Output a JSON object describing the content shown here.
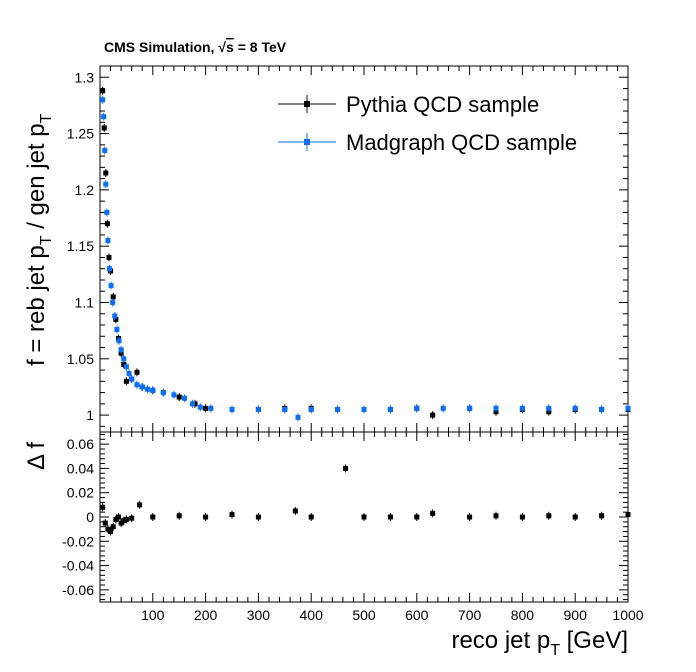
{
  "header": {
    "label": "CMS Simulation, ",
    "sqrt_symbol": "√",
    "energy_var": "s",
    "energy_value": " = 8 TeV"
  },
  "legend": {
    "placement": "top-right",
    "entries": [
      {
        "label": "Pythia QCD sample",
        "color": "#000000",
        "marker": "square"
      },
      {
        "label": "Madgraph QCD sample",
        "color": "#0a6ff5",
        "marker": "square"
      }
    ]
  },
  "axes": {
    "top_ylabel": {
      "main": "f = reb jet p",
      "sub1": "T",
      "mid": " / gen jet p",
      "sub2": "T"
    },
    "bottom_ylabel": "Δ f",
    "xlabel": {
      "main": "reco jet p",
      "sub": "T",
      "unit": " [GeV]"
    }
  },
  "chart_data": [
    {
      "type": "scatter",
      "panel": "ratio",
      "xlim": [
        0,
        1000
      ],
      "ylim": [
        0.985,
        1.31
      ],
      "x_ticks": [
        100,
        200,
        300,
        400,
        500,
        600,
        700,
        800,
        900,
        1000
      ],
      "y_ticks": [
        1,
        1.05,
        1.1,
        1.15,
        1.2,
        1.25,
        1.3
      ],
      "y_tick_labels": [
        "1",
        "1.05",
        "1.1",
        "1.15",
        "1.2",
        "1.25",
        "1.3"
      ],
      "grid": false,
      "series": [
        {
          "name": "Pythia QCD sample",
          "color": "#000000",
          "points": [
            [
              5,
              1.288
            ],
            [
              8,
              1.255
            ],
            [
              11,
              1.215
            ],
            [
              14,
              1.17
            ],
            [
              17,
              1.14
            ],
            [
              20,
              1.128
            ],
            [
              25,
              1.105
            ],
            [
              30,
              1.085
            ],
            [
              35,
              1.068
            ],
            [
              40,
              1.055
            ],
            [
              45,
              1.045
            ],
            [
              50,
              1.03
            ],
            [
              60,
              1.032
            ],
            [
              70,
              1.038
            ],
            [
              80,
              1.025
            ],
            [
              100,
              1.022
            ],
            [
              120,
              1.02
            ],
            [
              150,
              1.016
            ],
            [
              180,
              1.01
            ],
            [
              200,
              1.006
            ],
            [
              250,
              1.005
            ],
            [
              300,
              1.005
            ],
            [
              350,
              1.006
            ],
            [
              400,
              1.006
            ],
            [
              450,
              1.005
            ],
            [
              500,
              1.005
            ],
            [
              550,
              1.005
            ],
            [
              600,
              1.006
            ],
            [
              630,
              1.0
            ],
            [
              700,
              1.006
            ],
            [
              750,
              1.003
            ],
            [
              800,
              1.005
            ],
            [
              850,
              1.003
            ],
            [
              900,
              1.005
            ],
            [
              950,
              1.005
            ],
            [
              1000,
              1.005
            ]
          ]
        },
        {
          "name": "Madgraph QCD sample",
          "color": "#0a6ff5",
          "points": [
            [
              5,
              1.28
            ],
            [
              7,
              1.265
            ],
            [
              9,
              1.235
            ],
            [
              11,
              1.205
            ],
            [
              13,
              1.18
            ],
            [
              15,
              1.155
            ],
            [
              18,
              1.13
            ],
            [
              21,
              1.115
            ],
            [
              24,
              1.1
            ],
            [
              28,
              1.088
            ],
            [
              32,
              1.076
            ],
            [
              36,
              1.066
            ],
            [
              40,
              1.058
            ],
            [
              45,
              1.05
            ],
            [
              50,
              1.043
            ],
            [
              55,
              1.037
            ],
            [
              60,
              1.032
            ],
            [
              70,
              1.027
            ],
            [
              80,
              1.025
            ],
            [
              90,
              1.023
            ],
            [
              100,
              1.022
            ],
            [
              120,
              1.02
            ],
            [
              140,
              1.018
            ],
            [
              160,
              1.015
            ],
            [
              175,
              1.01
            ],
            [
              190,
              1.007
            ],
            [
              210,
              1.006
            ],
            [
              250,
              1.005
            ],
            [
              300,
              1.005
            ],
            [
              350,
              1.005
            ],
            [
              375,
              0.998
            ],
            [
              400,
              1.005
            ],
            [
              450,
              1.005
            ],
            [
              500,
              1.005
            ],
            [
              550,
              1.005
            ],
            [
              600,
              1.006
            ],
            [
              650,
              1.006
            ],
            [
              700,
              1.006
            ],
            [
              750,
              1.006
            ],
            [
              800,
              1.006
            ],
            [
              850,
              1.006
            ],
            [
              900,
              1.006
            ],
            [
              950,
              1.005
            ],
            [
              1000,
              1.006
            ]
          ]
        }
      ]
    },
    {
      "type": "scatter",
      "panel": "difference",
      "xlim": [
        0,
        1000
      ],
      "ylim": [
        -0.07,
        0.07
      ],
      "x_ticks": [
        100,
        200,
        300,
        400,
        500,
        600,
        700,
        800,
        900,
        1000
      ],
      "x_tick_labels": [
        "100",
        "200",
        "300",
        "400",
        "500",
        "600",
        "700",
        "800",
        "900",
        "1000"
      ],
      "y_ticks": [
        -0.06,
        -0.04,
        -0.02,
        0,
        0.02,
        0.04,
        0.06
      ],
      "y_tick_labels": [
        "-0.06",
        "-0.04",
        "-0.02",
        "0",
        "0.02",
        "0.04",
        "0.06"
      ],
      "grid": false,
      "series": [
        {
          "color": "#000000",
          "points": [
            [
              5,
              0.008
            ],
            [
              10,
              -0.005
            ],
            [
              15,
              -0.01
            ],
            [
              20,
              -0.012
            ],
            [
              25,
              -0.008
            ],
            [
              30,
              -0.002
            ],
            [
              35,
              0.0
            ],
            [
              40,
              -0.005
            ],
            [
              45,
              -0.003
            ],
            [
              50,
              -0.002
            ],
            [
              60,
              -0.001
            ],
            [
              75,
              0.01
            ],
            [
              100,
              0.0
            ],
            [
              150,
              0.001
            ],
            [
              200,
              0.0
            ],
            [
              250,
              0.002
            ],
            [
              300,
              0.0
            ],
            [
              370,
              0.005
            ],
            [
              400,
              0.0
            ],
            [
              465,
              0.04
            ],
            [
              500,
              0.0
            ],
            [
              550,
              0.0
            ],
            [
              600,
              0.0
            ],
            [
              630,
              0.003
            ],
            [
              700,
              0.0
            ],
            [
              750,
              0.001
            ],
            [
              800,
              0.0
            ],
            [
              850,
              0.001
            ],
            [
              900,
              0.0
            ],
            [
              950,
              0.001
            ],
            [
              1000,
              0.002
            ]
          ]
        }
      ]
    }
  ]
}
